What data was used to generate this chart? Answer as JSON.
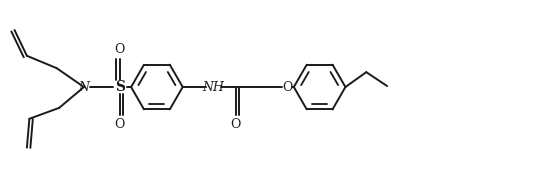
{
  "bg_color": "#ffffff",
  "line_color": "#1a1a1a",
  "lw": 1.4,
  "figsize": [
    5.45,
    1.82
  ],
  "dpi": 100,
  "xlim": [
    0,
    10.9
  ],
  "ylim": [
    0,
    3.64
  ]
}
